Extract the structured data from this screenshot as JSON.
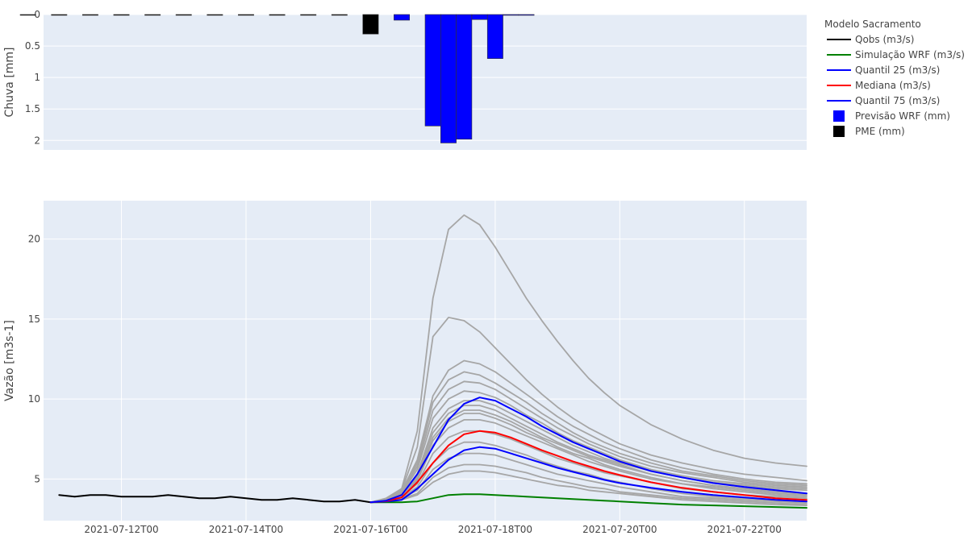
{
  "chart_data": [
    {
      "type": "bar",
      "ylabel": "Chuva [mm]",
      "ylim": [
        0,
        2.15
      ],
      "y_reversed": true,
      "yticks": [
        0,
        0.5,
        1,
        1.5,
        2
      ],
      "ytick_labels": [
        "0",
        "0.5",
        "1",
        "1.5",
        "2"
      ],
      "grid": true,
      "series": [
        {
          "name": "PME (mm)",
          "color": "#000000",
          "points": [
            {
              "t": "2021-07-10T12:00",
              "v": 0.0
            },
            {
              "t": "2021-07-11T00:00",
              "v": 0.0
            },
            {
              "t": "2021-07-11T12:00",
              "v": 0.0
            },
            {
              "t": "2021-07-12T00:00",
              "v": 0.0
            },
            {
              "t": "2021-07-12T12:00",
              "v": 0.0
            },
            {
              "t": "2021-07-13T00:00",
              "v": 0.0
            },
            {
              "t": "2021-07-13T12:00",
              "v": 0.0
            },
            {
              "t": "2021-07-14T00:00",
              "v": 0.0
            },
            {
              "t": "2021-07-14T12:00",
              "v": 0.0
            },
            {
              "t": "2021-07-15T00:00",
              "v": 0.0
            },
            {
              "t": "2021-07-15T12:00",
              "v": 0.0
            },
            {
              "t": "2021-07-16T00:00",
              "v": 0.31
            }
          ]
        },
        {
          "name": "Previsão WRF (mm)",
          "color": "#0000ff",
          "points": [
            {
              "t": "2021-07-16T12:00",
              "v": 0.09
            },
            {
              "t": "2021-07-17T00:00",
              "v": 1.77
            },
            {
              "t": "2021-07-17T06:00",
              "v": 2.04
            },
            {
              "t": "2021-07-17T12:00",
              "v": 1.98
            },
            {
              "t": "2021-07-17T18:00",
              "v": 0.08
            },
            {
              "t": "2021-07-18T00:00",
              "v": 0.7
            },
            {
              "t": "2021-07-18T06:00",
              "v": 0.01
            },
            {
              "t": "2021-07-18T12:00",
              "v": 0.01
            }
          ]
        }
      ]
    },
    {
      "type": "line",
      "ylabel": "Vazão [m3s-1]",
      "xlim": [
        "2021-07-10T18:00",
        "2021-07-23T00:00"
      ],
      "ylim": [
        2.4,
        22.4
      ],
      "yticks": [
        5,
        10,
        15,
        20
      ],
      "ytick_labels": [
        "5",
        "10",
        "15",
        "20"
      ],
      "xticks": [
        "2021-07-12T00:00",
        "2021-07-14T00:00",
        "2021-07-16T00:00",
        "2021-07-18T00:00",
        "2021-07-20T00:00",
        "2021-07-22T00:00"
      ],
      "xtick_labels": [
        "2021-07-12T00",
        "2021-07-14T00",
        "2021-07-16T00",
        "2021-07-18T00",
        "2021-07-20T00",
        "2021-07-22T00"
      ],
      "grid": true,
      "forecast_x": [
        "2021-07-16T00:00",
        "2021-07-16T06:00",
        "2021-07-16T12:00",
        "2021-07-16T18:00",
        "2021-07-17T00:00",
        "2021-07-17T06:00",
        "2021-07-17T12:00",
        "2021-07-17T18:00",
        "2021-07-18T00:00",
        "2021-07-18T06:00",
        "2021-07-18T12:00",
        "2021-07-18T18:00",
        "2021-07-19T00:00",
        "2021-07-19T06:00",
        "2021-07-19T12:00",
        "2021-07-19T18:00",
        "2021-07-20T00:00",
        "2021-07-20T12:00",
        "2021-07-21T00:00",
        "2021-07-21T12:00",
        "2021-07-22T00:00",
        "2021-07-22T12:00",
        "2021-07-23T00:00"
      ],
      "series": [
        {
          "name": "Qobs (m3/s)",
          "color": "#000000",
          "x": [
            "2021-07-11T00:00",
            "2021-07-11T06:00",
            "2021-07-11T12:00",
            "2021-07-11T18:00",
            "2021-07-12T00:00",
            "2021-07-12T06:00",
            "2021-07-12T12:00",
            "2021-07-12T18:00",
            "2021-07-13T00:00",
            "2021-07-13T06:00",
            "2021-07-13T12:00",
            "2021-07-13T18:00",
            "2021-07-14T00:00",
            "2021-07-14T06:00",
            "2021-07-14T12:00",
            "2021-07-14T18:00",
            "2021-07-15T00:00",
            "2021-07-15T06:00",
            "2021-07-15T12:00",
            "2021-07-15T18:00",
            "2021-07-16T00:00"
          ],
          "values": [
            4.0,
            3.9,
            4.0,
            4.0,
            3.9,
            3.9,
            3.9,
            4.0,
            3.9,
            3.8,
            3.8,
            3.9,
            3.8,
            3.7,
            3.7,
            3.8,
            3.7,
            3.6,
            3.6,
            3.7,
            3.55
          ]
        },
        {
          "name": "Simulação WRF (m3/s)",
          "color": "#008000",
          "values": [
            3.55,
            3.55,
            3.55,
            3.6,
            3.8,
            4.0,
            4.05,
            4.05,
            4.0,
            3.95,
            3.9,
            3.85,
            3.8,
            3.75,
            3.7,
            3.65,
            3.6,
            3.5,
            3.4,
            3.35,
            3.3,
            3.25,
            3.2
          ]
        },
        {
          "name": "Quantil 25 (m3/s)",
          "color": "#0000ff",
          "values": [
            3.55,
            3.6,
            3.7,
            4.4,
            5.3,
            6.2,
            6.8,
            7.0,
            6.9,
            6.6,
            6.3,
            6.0,
            5.7,
            5.45,
            5.2,
            4.95,
            4.75,
            4.45,
            4.2,
            4.0,
            3.85,
            3.7,
            3.6
          ]
        },
        {
          "name": "Mediana (m3/s)",
          "color": "#ff0000",
          "values": [
            3.55,
            3.62,
            3.85,
            4.8,
            6.0,
            7.1,
            7.8,
            8.0,
            7.9,
            7.6,
            7.2,
            6.8,
            6.45,
            6.1,
            5.8,
            5.5,
            5.25,
            4.8,
            4.45,
            4.2,
            4.0,
            3.8,
            3.7
          ]
        },
        {
          "name": "Quantil 75 (m3/s)",
          "color": "#0000ff",
          "values": [
            3.55,
            3.65,
            4.0,
            5.3,
            7.0,
            8.7,
            9.7,
            10.1,
            9.9,
            9.4,
            8.9,
            8.3,
            7.8,
            7.3,
            6.9,
            6.5,
            6.1,
            5.5,
            5.1,
            4.75,
            4.5,
            4.3,
            4.1
          ]
        }
      ],
      "ensemble_color": "#a6a6a6",
      "ensemble": [
        [
          3.55,
          3.8,
          4.4,
          8.0,
          16.3,
          20.6,
          21.5,
          20.9,
          19.5,
          17.9,
          16.3,
          14.9,
          13.6,
          12.4,
          11.3,
          10.4,
          9.6,
          8.4,
          7.5,
          6.8,
          6.3,
          6.0,
          5.8
        ],
        [
          3.55,
          3.75,
          4.3,
          7.0,
          13.9,
          15.1,
          14.9,
          14.2,
          13.2,
          12.2,
          11.2,
          10.3,
          9.5,
          8.8,
          8.2,
          7.7,
          7.2,
          6.5,
          6.0,
          5.6,
          5.3,
          5.1,
          4.9
        ],
        [
          3.55,
          3.75,
          4.25,
          6.2,
          10.2,
          11.8,
          12.4,
          12.2,
          11.7,
          11.0,
          10.3,
          9.6,
          8.9,
          8.3,
          7.8,
          7.3,
          6.9,
          6.2,
          5.7,
          5.3,
          5.0,
          4.8,
          4.7
        ],
        [
          3.55,
          3.7,
          4.2,
          6.0,
          9.8,
          11.2,
          11.7,
          11.5,
          11.0,
          10.4,
          9.8,
          9.1,
          8.5,
          7.9,
          7.4,
          7.0,
          6.6,
          6.0,
          5.5,
          5.2,
          4.9,
          4.7,
          4.6
        ],
        [
          3.55,
          3.7,
          4.15,
          5.8,
          9.3,
          10.6,
          11.1,
          11.0,
          10.6,
          10.0,
          9.4,
          8.8,
          8.2,
          7.7,
          7.2,
          6.8,
          6.4,
          5.8,
          5.4,
          5.1,
          4.8,
          4.6,
          4.5
        ],
        [
          3.55,
          3.7,
          4.1,
          5.6,
          8.8,
          10.0,
          10.5,
          10.4,
          10.1,
          9.6,
          9.0,
          8.5,
          7.9,
          7.4,
          7.0,
          6.6,
          6.2,
          5.6,
          5.2,
          4.9,
          4.7,
          4.5,
          4.4
        ],
        [
          3.55,
          3.68,
          4.05,
          5.3,
          8.2,
          9.4,
          9.9,
          9.9,
          9.6,
          9.1,
          8.6,
          8.1,
          7.6,
          7.1,
          6.7,
          6.3,
          6.0,
          5.5,
          5.1,
          4.8,
          4.6,
          4.4,
          4.3
        ],
        [
          3.55,
          3.66,
          4.0,
          5.1,
          7.6,
          8.8,
          9.3,
          9.3,
          9.0,
          8.6,
          8.1,
          7.6,
          7.2,
          6.8,
          6.4,
          6.1,
          5.8,
          5.3,
          4.9,
          4.6,
          4.4,
          4.2,
          4.1
        ],
        [
          3.55,
          3.64,
          3.95,
          4.9,
          7.1,
          8.2,
          8.7,
          8.7,
          8.5,
          8.1,
          7.7,
          7.3,
          6.9,
          6.5,
          6.1,
          5.8,
          5.5,
          5.0,
          4.7,
          4.4,
          4.2,
          4.0,
          3.9
        ],
        [
          3.55,
          3.62,
          3.9,
          4.7,
          6.6,
          7.6,
          8.0,
          8.0,
          7.8,
          7.5,
          7.1,
          6.7,
          6.3,
          6.0,
          5.7,
          5.4,
          5.2,
          4.8,
          4.4,
          4.2,
          4.0,
          3.9,
          3.8
        ],
        [
          3.55,
          3.6,
          3.85,
          4.5,
          6.0,
          6.9,
          7.3,
          7.3,
          7.1,
          6.8,
          6.5,
          6.1,
          5.8,
          5.5,
          5.3,
          5.0,
          4.8,
          4.4,
          4.1,
          3.9,
          3.8,
          3.7,
          3.6
        ],
        [
          3.55,
          3.58,
          3.8,
          4.3,
          5.6,
          6.3,
          6.6,
          6.6,
          6.5,
          6.2,
          5.9,
          5.6,
          5.3,
          5.1,
          4.9,
          4.7,
          4.5,
          4.2,
          3.9,
          3.8,
          3.7,
          3.6,
          3.5
        ],
        [
          3.55,
          3.57,
          3.75,
          4.1,
          5.1,
          5.7,
          5.9,
          5.9,
          5.8,
          5.6,
          5.4,
          5.1,
          4.9,
          4.7,
          4.5,
          4.4,
          4.2,
          4.0,
          3.8,
          3.7,
          3.6,
          3.5,
          3.4
        ],
        [
          3.55,
          3.56,
          3.7,
          4.0,
          4.8,
          5.3,
          5.5,
          5.5,
          5.4,
          5.2,
          5.0,
          4.8,
          4.6,
          4.5,
          4.3,
          4.2,
          4.1,
          3.9,
          3.7,
          3.6,
          3.5,
          3.4,
          3.35
        ],
        [
          3.55,
          3.6,
          3.9,
          5.0,
          7.4,
          8.6,
          9.1,
          9.1,
          8.8,
          8.4,
          7.9,
          7.5,
          7.0,
          6.6,
          6.3,
          5.9,
          5.6,
          5.1,
          4.7,
          4.5,
          4.3,
          4.1,
          4.0
        ],
        [
          3.55,
          3.62,
          3.95,
          5.2,
          7.9,
          9.1,
          9.6,
          9.6,
          9.3,
          8.8,
          8.3,
          7.8,
          7.3,
          6.9,
          6.5,
          6.2,
          5.9,
          5.3,
          4.9,
          4.6,
          4.4,
          4.2,
          4.1
        ]
      ]
    }
  ],
  "legend": {
    "title": "Modelo Sacramento",
    "items": [
      {
        "label": "Qobs (m3/s)",
        "kind": "line",
        "color": "#000000"
      },
      {
        "label": "Simulação WRF (m3/s)",
        "kind": "line",
        "color": "#008000"
      },
      {
        "label": "Quantil 25 (m3/s)",
        "kind": "line",
        "color": "#0000ff"
      },
      {
        "label": "Mediana (m3/s)",
        "kind": "line",
        "color": "#ff0000"
      },
      {
        "label": "Quantil 75 (m3/s)",
        "kind": "line",
        "color": "#0000ff"
      },
      {
        "label": "Previsão WRF (mm)",
        "kind": "square",
        "color": "#0000ff"
      },
      {
        "label": "PME (mm)",
        "kind": "square",
        "color": "#000000"
      }
    ]
  }
}
